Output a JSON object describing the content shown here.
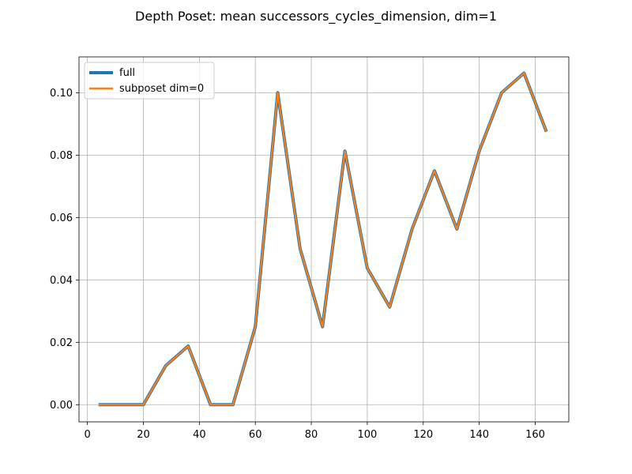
{
  "chart_data": {
    "type": "line",
    "title": "Depth Poset: mean successors_cycles_dimension, dim=1",
    "xlabel": "",
    "ylabel": "",
    "xlim": [
      -3,
      172
    ],
    "ylim": [
      -0.0055,
      0.1115
    ],
    "xticks": [
      0,
      20,
      40,
      60,
      80,
      100,
      120,
      140,
      160
    ],
    "yticks": [
      0.0,
      0.02,
      0.04,
      0.06,
      0.08,
      0.1
    ],
    "ytick_labels": [
      "0.00",
      "0.02",
      "0.04",
      "0.06",
      "0.08",
      "0.10"
    ],
    "grid": true,
    "legend": "top-left",
    "x": [
      4,
      12,
      20,
      28,
      36,
      44,
      52,
      60,
      68,
      76,
      84,
      92,
      100,
      108,
      116,
      124,
      132,
      140,
      148,
      156,
      164
    ],
    "series": [
      {
        "name": "full",
        "color": "#1f77b4",
        "values": [
          0.0,
          0.0,
          0.0,
          0.0125,
          0.0188,
          0.0,
          0.0,
          0.025,
          0.1,
          0.05,
          0.025,
          0.0813,
          0.0438,
          0.0313,
          0.0563,
          0.075,
          0.0563,
          0.0813,
          0.1,
          0.1063,
          0.0875
        ]
      },
      {
        "name": "subposet dim=0",
        "color": "#ff7f0e",
        "values": [
          0.0,
          0.0,
          0.0,
          0.0125,
          0.0188,
          0.0,
          0.0,
          0.025,
          0.1,
          0.05,
          0.025,
          0.0813,
          0.0438,
          0.0313,
          0.0563,
          0.075,
          0.0563,
          0.0813,
          0.1,
          0.1063,
          0.0875
        ]
      }
    ]
  }
}
